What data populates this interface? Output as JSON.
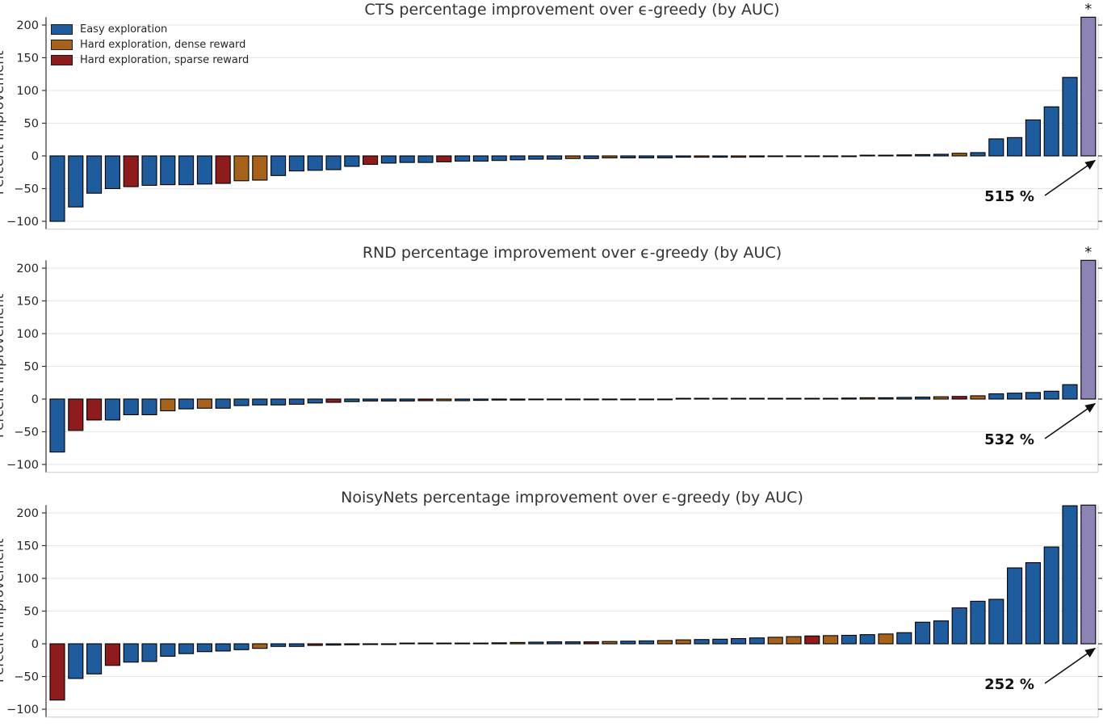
{
  "colors": {
    "easy": "#1f5c9e",
    "dense": "#a6611a",
    "sparse": "#8e1c1c",
    "outlier": "#8d84b5",
    "bar_border": "#000000",
    "grid": "#e6e6e6",
    "spine": "#333333",
    "tick_text": "#262626",
    "annotation_text": "#111111"
  },
  "legend": {
    "items": [
      {
        "label": "Easy exploration",
        "color_key": "easy"
      },
      {
        "label": "Hard exploration, dense reward",
        "color_key": "dense"
      },
      {
        "label": "Hard exploration, sparse reward",
        "color_key": "sparse"
      }
    ]
  },
  "chart_data": [
    {
      "type": "bar",
      "title": "CTS percentage improvement over ϵ-greedy (by AUC)",
      "ylabel": "Percent Improvement",
      "ylim": [
        -112,
        212
      ],
      "yticks": [
        -100,
        -50,
        0,
        50,
        100,
        150,
        200
      ],
      "grid": true,
      "legend_visible": true,
      "asterisk": "*",
      "annotation": {
        "label": "515 %",
        "value_pct": 515,
        "target": "last-bar"
      },
      "bars": [
        [
          -100,
          "e"
        ],
        [
          -78,
          "e"
        ],
        [
          -57,
          "e"
        ],
        [
          -50,
          "e"
        ],
        [
          -47,
          "s"
        ],
        [
          -45,
          "e"
        ],
        [
          -44,
          "e"
        ],
        [
          -44,
          "e"
        ],
        [
          -43,
          "e"
        ],
        [
          -42,
          "s"
        ],
        [
          -38,
          "d"
        ],
        [
          -37,
          "d"
        ],
        [
          -30,
          "e"
        ],
        [
          -23,
          "e"
        ],
        [
          -22,
          "e"
        ],
        [
          -21,
          "e"
        ],
        [
          -16,
          "e"
        ],
        [
          -13,
          "s"
        ],
        [
          -11,
          "e"
        ],
        [
          -10,
          "e"
        ],
        [
          -10,
          "e"
        ],
        [
          -9,
          "s"
        ],
        [
          -8,
          "e"
        ],
        [
          -8,
          "e"
        ],
        [
          -7,
          "e"
        ],
        [
          -6,
          "e"
        ],
        [
          -5,
          "e"
        ],
        [
          -5,
          "e"
        ],
        [
          -4,
          "d"
        ],
        [
          -4,
          "e"
        ],
        [
          -3,
          "d"
        ],
        [
          -3,
          "e"
        ],
        [
          -3,
          "e"
        ],
        [
          -3,
          "e"
        ],
        [
          -2,
          "e"
        ],
        [
          -2,
          "d"
        ],
        [
          -2,
          "e"
        ],
        [
          -2,
          "d"
        ],
        [
          -1.5,
          "d"
        ],
        [
          -1,
          "e"
        ],
        [
          -1,
          "e"
        ],
        [
          -1,
          "e"
        ],
        [
          -0.5,
          "e"
        ],
        [
          -0.5,
          "e"
        ],
        [
          0.5,
          "e"
        ],
        [
          1,
          "e"
        ],
        [
          1.5,
          "e"
        ],
        [
          2,
          "e"
        ],
        [
          2.5,
          "e"
        ],
        [
          4,
          "d"
        ],
        [
          5,
          "e"
        ],
        [
          26,
          "e"
        ],
        [
          28,
          "e"
        ],
        [
          55,
          "e"
        ],
        [
          75,
          "e"
        ],
        [
          120,
          "e"
        ],
        [
          515,
          "p"
        ]
      ]
    },
    {
      "type": "bar",
      "title": "RND percentage improvement over ϵ-greedy (by AUC)",
      "ylabel": "Percent Improvement",
      "ylim": [
        -112,
        212
      ],
      "yticks": [
        -100,
        -50,
        0,
        50,
        100,
        150,
        200
      ],
      "grid": true,
      "legend_visible": false,
      "asterisk": "*",
      "annotation": {
        "label": "532 %",
        "value_pct": 532,
        "target": "last-bar"
      },
      "bars": [
        [
          -81,
          "e"
        ],
        [
          -48,
          "s"
        ],
        [
          -32,
          "s"
        ],
        [
          -32,
          "e"
        ],
        [
          -24,
          "e"
        ],
        [
          -24,
          "e"
        ],
        [
          -18,
          "d"
        ],
        [
          -15,
          "e"
        ],
        [
          -14,
          "d"
        ],
        [
          -14,
          "e"
        ],
        [
          -10,
          "e"
        ],
        [
          -9,
          "e"
        ],
        [
          -9,
          "e"
        ],
        [
          -8,
          "e"
        ],
        [
          -6,
          "e"
        ],
        [
          -5,
          "s"
        ],
        [
          -4,
          "e"
        ],
        [
          -3,
          "e"
        ],
        [
          -3,
          "e"
        ],
        [
          -3,
          "e"
        ],
        [
          -2.5,
          "s"
        ],
        [
          -2.5,
          "d"
        ],
        [
          -2.5,
          "e"
        ],
        [
          -2,
          "e"
        ],
        [
          -1.5,
          "e"
        ],
        [
          -1.5,
          "e"
        ],
        [
          -1,
          "e"
        ],
        [
          -1,
          "e"
        ],
        [
          -1,
          "e"
        ],
        [
          -0.5,
          "e"
        ],
        [
          -0.5,
          "e"
        ],
        [
          -0.5,
          "e"
        ],
        [
          -0.5,
          "d"
        ],
        [
          -0.5,
          "e"
        ],
        [
          0,
          "e"
        ],
        [
          0,
          "e"
        ],
        [
          0,
          "e"
        ],
        [
          0,
          "e"
        ],
        [
          0,
          "e"
        ],
        [
          0,
          "e"
        ],
        [
          0.5,
          "e"
        ],
        [
          0.5,
          "e"
        ],
        [
          1,
          "e"
        ],
        [
          1.5,
          "e"
        ],
        [
          2,
          "d"
        ],
        [
          2,
          "e"
        ],
        [
          2.5,
          "e"
        ],
        [
          3,
          "e"
        ],
        [
          3.5,
          "d"
        ],
        [
          4,
          "s"
        ],
        [
          5,
          "d"
        ],
        [
          8,
          "e"
        ],
        [
          9,
          "e"
        ],
        [
          10,
          "e"
        ],
        [
          12,
          "e"
        ],
        [
          22,
          "e"
        ],
        [
          532,
          "p"
        ]
      ]
    },
    {
      "type": "bar",
      "title": "NoisyNets percentage improvement over ϵ-greedy (by AUC)",
      "ylabel": "Percent Improvement",
      "ylim": [
        -112,
        212
      ],
      "yticks": [
        -100,
        -50,
        0,
        50,
        100,
        150,
        200
      ],
      "grid": true,
      "legend_visible": false,
      "asterisk": "",
      "annotation": {
        "label": "252 %",
        "value_pct": 252,
        "target": "last-bar"
      },
      "bars": [
        [
          -86,
          "s"
        ],
        [
          -53,
          "e"
        ],
        [
          -46,
          "e"
        ],
        [
          -33,
          "s"
        ],
        [
          -28,
          "e"
        ],
        [
          -27,
          "e"
        ],
        [
          -19,
          "e"
        ],
        [
          -15,
          "e"
        ],
        [
          -12,
          "e"
        ],
        [
          -11,
          "e"
        ],
        [
          -9,
          "e"
        ],
        [
          -7,
          "d"
        ],
        [
          -4,
          "e"
        ],
        [
          -4,
          "e"
        ],
        [
          -2.5,
          "s"
        ],
        [
          -2,
          "e"
        ],
        [
          -1.5,
          "e"
        ],
        [
          -1,
          "e"
        ],
        [
          -0.5,
          "e"
        ],
        [
          0,
          "e"
        ],
        [
          0,
          "e"
        ],
        [
          0,
          "e"
        ],
        [
          0.5,
          "e"
        ],
        [
          1,
          "e"
        ],
        [
          1.5,
          "e"
        ],
        [
          2,
          "d"
        ],
        [
          2.5,
          "e"
        ],
        [
          3,
          "e"
        ],
        [
          3,
          "e"
        ],
        [
          3,
          "s"
        ],
        [
          3.5,
          "d"
        ],
        [
          4,
          "e"
        ],
        [
          4.5,
          "e"
        ],
        [
          5,
          "d"
        ],
        [
          6,
          "d"
        ],
        [
          6.5,
          "e"
        ],
        [
          7,
          "e"
        ],
        [
          8,
          "e"
        ],
        [
          9,
          "e"
        ],
        [
          10,
          "d"
        ],
        [
          11,
          "d"
        ],
        [
          12,
          "s"
        ],
        [
          12.5,
          "d"
        ],
        [
          13,
          "e"
        ],
        [
          14,
          "e"
        ],
        [
          15,
          "d"
        ],
        [
          17,
          "e"
        ],
        [
          33,
          "e"
        ],
        [
          35,
          "e"
        ],
        [
          55,
          "e"
        ],
        [
          65,
          "e"
        ],
        [
          68,
          "e"
        ],
        [
          116,
          "e"
        ],
        [
          124,
          "e"
        ],
        [
          148,
          "e"
        ],
        [
          211,
          "e"
        ],
        [
          252,
          "p"
        ]
      ]
    }
  ]
}
